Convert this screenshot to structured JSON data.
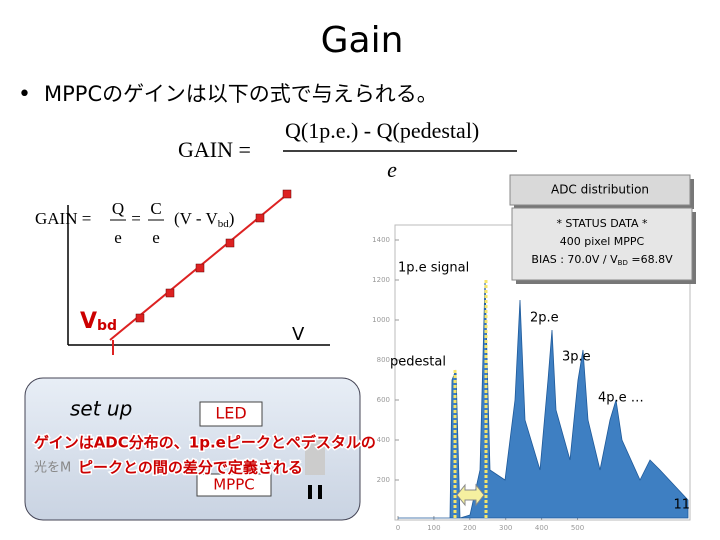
{
  "title": "Gain",
  "bullet": "MPPCのゲインは以下の式で与えられる。",
  "formula1": {
    "lhs": "GAIN =",
    "numerator": "Q(1p.e.) - Q(pedestal)",
    "denominator": "e"
  },
  "formula2": {
    "lhs": "GAIN =",
    "q": "Q",
    "e1": "e",
    "eq": "=",
    "c": "C",
    "e2": "e",
    "rhs": "(V - V",
    "sub": "bd",
    "close": ")"
  },
  "graph": {
    "vbd_main": "V",
    "vbd_sub": "bd",
    "v": "V"
  },
  "adc_box": "ADC distribution",
  "status": {
    "line1": "* STATUS DATA *",
    "line2": "400 pixel MPPC",
    "line3": "BIAS : 70.0V / V",
    "sub": "BD",
    "line3_end": " =68.8V"
  },
  "histogram": {
    "yticks": [
      1400,
      1200,
      1000,
      800,
      600,
      400,
      200
    ],
    "xticks": [
      0,
      100,
      200,
      300,
      400,
      500
    ],
    "labels": {
      "p1": "1p.e signal",
      "p2": "2p.e",
      "p3": "3p.e",
      "p4": "4p.e …",
      "ped": "pedestal"
    }
  },
  "setup": {
    "title": "set up",
    "led": "LED",
    "mppc": "MPPC",
    "hidden": "光をM"
  },
  "note": {
    "line1": "ゲインはADC分布の、1p.eピークとペデスタルの",
    "line2": "ピークとの間の差分で定義される"
  },
  "page": "11"
}
